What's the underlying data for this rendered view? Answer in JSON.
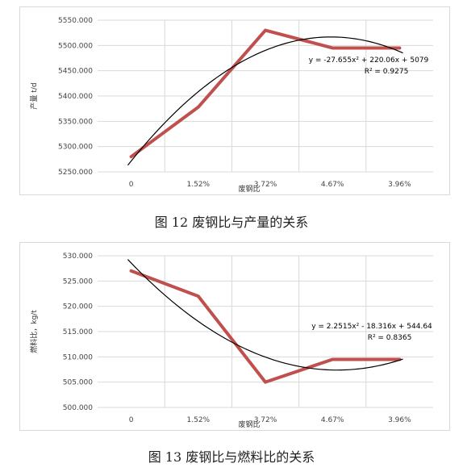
{
  "chart_data": [
    {
      "type": "line",
      "categories": [
        "0",
        "1.52%",
        "3.72%",
        "4.67%",
        "3.96%"
      ],
      "series": [
        {
          "values": [
            5280,
            5378,
            5530,
            5495,
            5495
          ],
          "color": "#c0504d"
        }
      ],
      "trendline": {
        "equation": "y = -27.655x² + 220.06x + 5079",
        "r2": "R² = 0.9275",
        "a": -27.655,
        "b": 220.06,
        "c": 5079,
        "color": "#000000"
      },
      "ylim": [
        5250,
        5550
      ],
      "yticks": [
        "5250.000",
        "5300.000",
        "5350.000",
        "5400.000",
        "5450.000",
        "5500.000",
        "5550.000"
      ],
      "xlabel": "废钢比",
      "ylabel": "产量 t/d",
      "grid": true,
      "caption": "图 12    废钢比与产量的关系"
    },
    {
      "type": "line",
      "categories": [
        "0",
        "1.52%",
        "3.72%",
        "4.67%",
        "3.96%"
      ],
      "series": [
        {
          "values": [
            527,
            522,
            505,
            509.5,
            509.5
          ],
          "color": "#c0504d"
        }
      ],
      "trendline": {
        "equation": "y = 2.2515x² - 18.316x + 544.64",
        "r2": "R² = 0.8365",
        "a": 2.2515,
        "b": -18.316,
        "c": 544.64,
        "color": "#000000"
      },
      "ylim": [
        500,
        530
      ],
      "yticks": [
        "500.000",
        "505.000",
        "510.000",
        "515.000",
        "520.000",
        "525.000",
        "530.000"
      ],
      "xlabel": "废钢比",
      "ylabel": "燃料比，kg/t",
      "grid": true,
      "caption": "图 13    废钢比与燃料比的关系"
    }
  ]
}
